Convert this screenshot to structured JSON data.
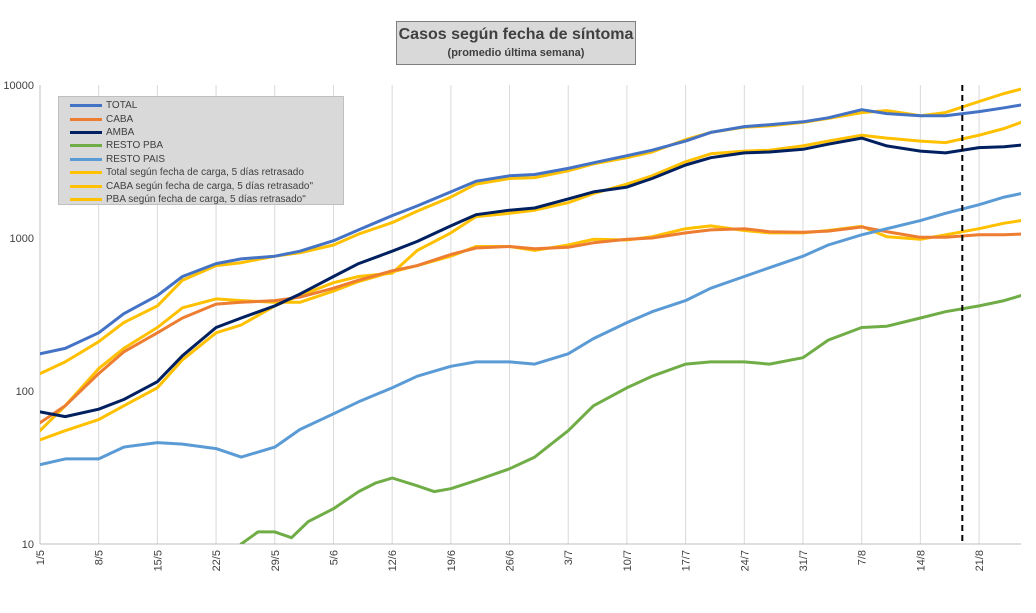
{
  "chart_data": {
    "type": "line",
    "title": "Casos según fecha de síntoma",
    "subtitle": "(promedio última semana)",
    "yscale": "log",
    "ylim": [
      10,
      10000
    ],
    "y_ticks": [
      "10",
      "100",
      "1000",
      "10000"
    ],
    "x_ticks": [
      "1/5",
      "8/5",
      "15/5",
      "22/5",
      "29/5",
      "5/6",
      "12/6",
      "19/6",
      "26/6",
      "3/7",
      "10/7",
      "17/7",
      "24/7",
      "31/7",
      "7/8",
      "14/8",
      "21/8"
    ],
    "x_start": "1/5",
    "x_end": "26/8",
    "vertical_marker": "19/8",
    "grid": "vertical",
    "legend_position": "top-left",
    "series": [
      {
        "name": "TOTAL",
        "color": "#4472c4",
        "x": [
          "1/5",
          "4/5",
          "8/5",
          "11/5",
          "15/5",
          "18/5",
          "22/5",
          "25/5",
          "29/5",
          "1/6",
          "5/6",
          "8/6",
          "12/6",
          "15/6",
          "19/6",
          "22/6",
          "26/6",
          "29/6",
          "3/7",
          "6/7",
          "10/7",
          "13/7",
          "17/7",
          "20/7",
          "24/7",
          "27/7",
          "31/7",
          "3/8",
          "7/8",
          "10/8",
          "14/8",
          "17/8",
          "21/8",
          "24/8",
          "26/8"
        ],
        "y": [
          175,
          190,
          240,
          320,
          420,
          560,
          680,
          730,
          760,
          820,
          960,
          1130,
          1400,
          1620,
          2000,
          2350,
          2550,
          2600,
          2850,
          3100,
          3450,
          3750,
          4300,
          4900,
          5350,
          5500,
          5750,
          6100,
          6900,
          6500,
          6300,
          6300,
          6700,
          7100,
          7400
        ]
      },
      {
        "name": "CABA",
        "color": "#ed7d31",
        "x": [
          "1/5",
          "4/5",
          "8/5",
          "11/5",
          "15/5",
          "18/5",
          "22/5",
          "25/5",
          "29/5",
          "1/6",
          "5/6",
          "8/6",
          "12/6",
          "15/6",
          "19/6",
          "22/6",
          "26/6",
          "29/6",
          "3/7",
          "6/7",
          "10/7",
          "13/7",
          "17/7",
          "20/7",
          "24/7",
          "27/7",
          "31/7",
          "3/8",
          "7/8",
          "10/8",
          "14/8",
          "17/8",
          "21/8",
          "24/8",
          "26/8"
        ],
        "y": [
          62,
          80,
          130,
          180,
          240,
          300,
          370,
          380,
          390,
          410,
          470,
          530,
          610,
          660,
          780,
          860,
          880,
          850,
          870,
          930,
          980,
          1000,
          1080,
          1130,
          1150,
          1100,
          1090,
          1110,
          1180,
          1100,
          1010,
          1010,
          1050,
          1050,
          1060
        ]
      },
      {
        "name": "AMBA",
        "color": "#002060",
        "x": [
          "1/5",
          "4/5",
          "8/5",
          "11/5",
          "15/5",
          "18/5",
          "22/5",
          "25/5",
          "29/5",
          "1/6",
          "5/6",
          "8/6",
          "12/6",
          "15/6",
          "19/6",
          "22/6",
          "26/6",
          "29/6",
          "3/7",
          "6/7",
          "10/7",
          "13/7",
          "17/7",
          "20/7",
          "24/7",
          "27/7",
          "31/7",
          "3/8",
          "7/8",
          "10/8",
          "14/8",
          "17/8",
          "21/8",
          "24/8",
          "26/8"
        ],
        "y": [
          73,
          68,
          76,
          88,
          115,
          170,
          260,
          300,
          360,
          430,
          560,
          680,
          820,
          950,
          1200,
          1420,
          1520,
          1570,
          1800,
          2000,
          2150,
          2450,
          3000,
          3350,
          3600,
          3650,
          3800,
          4100,
          4500,
          4000,
          3700,
          3600,
          3900,
          3950,
          4050
        ]
      },
      {
        "name": "RESTO PBA",
        "color": "#70ad47",
        "x": [
          "25/5",
          "27/5",
          "29/5",
          "31/5",
          "2/6",
          "5/6",
          "8/6",
          "10/6",
          "12/6",
          "15/6",
          "17/6",
          "19/6",
          "22/6",
          "26/6",
          "29/6",
          "3/7",
          "6/7",
          "10/7",
          "13/7",
          "17/7",
          "20/7",
          "24/7",
          "27/7",
          "31/7",
          "3/8",
          "7/8",
          "10/8",
          "14/8",
          "17/8",
          "21/8",
          "24/8",
          "26/8"
        ],
        "y": [
          10,
          12,
          12,
          11,
          14,
          17,
          22,
          25,
          27,
          24,
          22,
          23,
          26,
          31,
          37,
          55,
          80,
          105,
          125,
          150,
          155,
          155,
          150,
          165,
          215,
          260,
          265,
          300,
          330,
          360,
          390,
          420
        ]
      },
      {
        "name": "RESTO PAIS",
        "color": "#5b9bd5",
        "x": [
          "1/5",
          "4/5",
          "8/5",
          "11/5",
          "15/5",
          "18/5",
          "22/5",
          "25/5",
          "29/5",
          "1/6",
          "5/6",
          "8/6",
          "12/6",
          "15/6",
          "19/6",
          "22/6",
          "26/6",
          "29/6",
          "3/7",
          "6/7",
          "10/7",
          "13/7",
          "17/7",
          "20/7",
          "24/7",
          "27/7",
          "31/7",
          "3/8",
          "7/8",
          "10/8",
          "14/8",
          "17/8",
          "21/8",
          "24/8",
          "26/8"
        ],
        "y": [
          33,
          36,
          36,
          43,
          46,
          45,
          42,
          37,
          43,
          56,
          71,
          85,
          105,
          125,
          145,
          155,
          155,
          150,
          175,
          220,
          280,
          330,
          390,
          470,
          560,
          640,
          760,
          900,
          1050,
          1150,
          1300,
          1450,
          1650,
          1850,
          1950
        ]
      },
      {
        "name": "Total según fecha de carga, 5 días retrasado",
        "color": "#ffc000",
        "x": [
          "1/5",
          "4/5",
          "8/5",
          "11/5",
          "15/5",
          "18/5",
          "22/5",
          "25/5",
          "29/5",
          "1/6",
          "5/6",
          "8/6",
          "12/6",
          "15/6",
          "19/6",
          "22/6",
          "26/6",
          "29/6",
          "3/7",
          "6/7",
          "10/7",
          "13/7",
          "17/7",
          "20/7",
          "24/7",
          "27/7",
          "31/7",
          "3/8",
          "7/8",
          "10/8",
          "14/8",
          "17/8",
          "21/8",
          "24/8",
          "26/8"
        ],
        "y": [
          130,
          155,
          210,
          280,
          360,
          530,
          660,
          690,
          760,
          800,
          900,
          1060,
          1260,
          1500,
          1850,
          2250,
          2450,
          2480,
          2750,
          3050,
          3350,
          3650,
          4400,
          4900,
          5300,
          5400,
          5700,
          6050,
          6600,
          6800,
          6300,
          6600,
          7800,
          8800,
          9400
        ]
      },
      {
        "name": "CABA según fecha de carga, 5 días retrasado\"",
        "color": "#ffc000",
        "x": [
          "1/5",
          "4/5",
          "8/5",
          "11/5",
          "15/5",
          "18/5",
          "22/5",
          "25/5",
          "29/5",
          "1/6",
          "5/6",
          "8/6",
          "12/6",
          "15/6",
          "19/6",
          "22/6",
          "26/6",
          "29/6",
          "3/7",
          "6/7",
          "10/7",
          "13/7",
          "17/7",
          "20/7",
          "24/7",
          "27/7",
          "31/7",
          "3/8",
          "7/8",
          "10/8",
          "14/8",
          "17/8",
          "21/8",
          "24/8",
          "26/8"
        ],
        "y": [
          55,
          80,
          140,
          190,
          260,
          350,
          400,
          390,
          380,
          380,
          450,
          520,
          600,
          660,
          760,
          880,
          880,
          830,
          900,
          980,
          970,
          1020,
          1150,
          1200,
          1120,
          1080,
          1080,
          1120,
          1190,
          1020,
          980,
          1050,
          1150,
          1250,
          1300
        ]
      },
      {
        "name": "PBA según fecha de carga, 5 días retrasado\"",
        "color": "#ffc000",
        "x": [
          "1/5",
          "4/5",
          "8/5",
          "11/5",
          "15/5",
          "18/5",
          "22/5",
          "25/5",
          "29/5",
          "1/6",
          "5/6",
          "8/6",
          "12/6",
          "15/6",
          "19/6",
          "22/6",
          "26/6",
          "29/6",
          "3/7",
          "6/7",
          "10/7",
          "13/7",
          "17/7",
          "20/7",
          "24/7",
          "27/7",
          "31/7",
          "3/8",
          "7/8",
          "10/8",
          "14/8",
          "17/8",
          "21/8",
          "24/8",
          "26/8"
        ],
        "y": [
          48,
          55,
          65,
          80,
          105,
          160,
          240,
          270,
          360,
          420,
          510,
          560,
          590,
          830,
          1080,
          1380,
          1450,
          1520,
          1700,
          1950,
          2250,
          2550,
          3150,
          3550,
          3700,
          3750,
          4000,
          4300,
          4700,
          4500,
          4300,
          4200,
          4700,
          5200,
          5700
        ]
      }
    ]
  }
}
